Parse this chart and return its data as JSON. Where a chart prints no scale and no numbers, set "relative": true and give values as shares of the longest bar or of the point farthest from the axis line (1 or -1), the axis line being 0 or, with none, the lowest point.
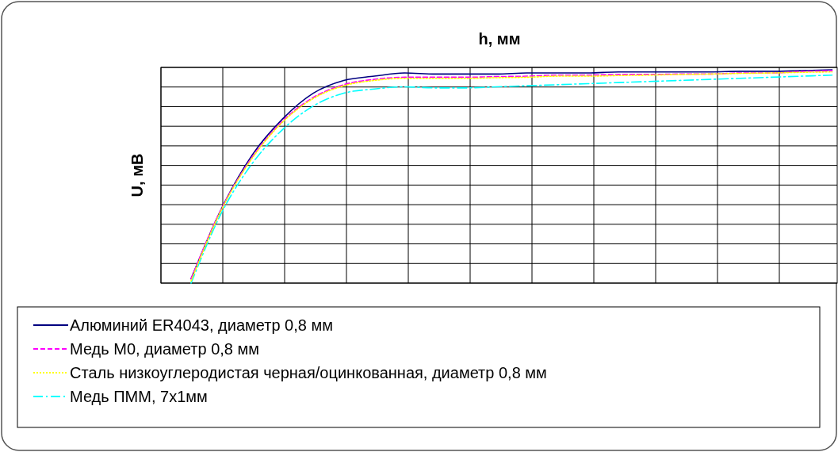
{
  "chart_data": {
    "type": "line",
    "title": "h, мм",
    "ylabel": "U, мВ",
    "relative": true,
    "grid": true,
    "legend": "bottom",
    "marker": "none",
    "categories": [
      null,
      null,
      null,
      null,
      null,
      null,
      null,
      null,
      null,
      null,
      null,
      null,
      null,
      null,
      null,
      null,
      null,
      null,
      null,
      null,
      null,
      null
    ],
    "series": [
      {
        "name": "Алюминий ER4043, диаметр 0,8 мм",
        "color": "#000080",
        "line_style": "solid",
        "values": [
          0.02,
          0.35,
          0.6,
          0.77,
          0.89,
          0.95,
          0.97,
          0.985,
          0.98,
          0.98,
          0.98,
          0.985,
          0.985,
          0.985,
          0.99,
          0.99,
          0.99,
          0.99,
          0.993,
          0.993,
          0.996,
          1
        ]
      },
      {
        "name": "Медь М0, диаметр 0,8 мм",
        "color": "#ff00ff",
        "line_style": "dashed",
        "values": [
          0.02,
          0.35,
          0.59,
          0.76,
          0.87,
          0.93,
          0.955,
          0.965,
          0.965,
          0.965,
          0.968,
          0.97,
          0.975,
          0.975,
          0.978,
          0.978,
          0.98,
          0.98,
          0.985,
          0.985,
          0.992,
          0.996
        ]
      },
      {
        "name": "Сталь  низкоуглеродистая черная/оцинкованная,  диаметр 0,8 мм",
        "color": "#ffff00",
        "line_style": "dotted",
        "values": [
          0.01,
          0.345,
          0.585,
          0.755,
          0.865,
          0.925,
          0.95,
          0.96,
          0.96,
          0.96,
          0.963,
          0.965,
          0.97,
          0.97,
          0.973,
          0.975,
          0.978,
          0.98,
          0.983,
          0.985,
          0.988,
          0.99
        ]
      },
      {
        "name": "Медь ПММ, 7x1мм",
        "color": "#00ffff",
        "line_style": "dashdot",
        "values": [
          0,
          0.33,
          0.56,
          0.72,
          0.83,
          0.89,
          0.91,
          0.92,
          0.915,
          0.915,
          0.92,
          0.925,
          0.93,
          0.935,
          0.94,
          0.945,
          0.95,
          0.955,
          0.96,
          0.965,
          0.97,
          0.975
        ]
      }
    ]
  }
}
